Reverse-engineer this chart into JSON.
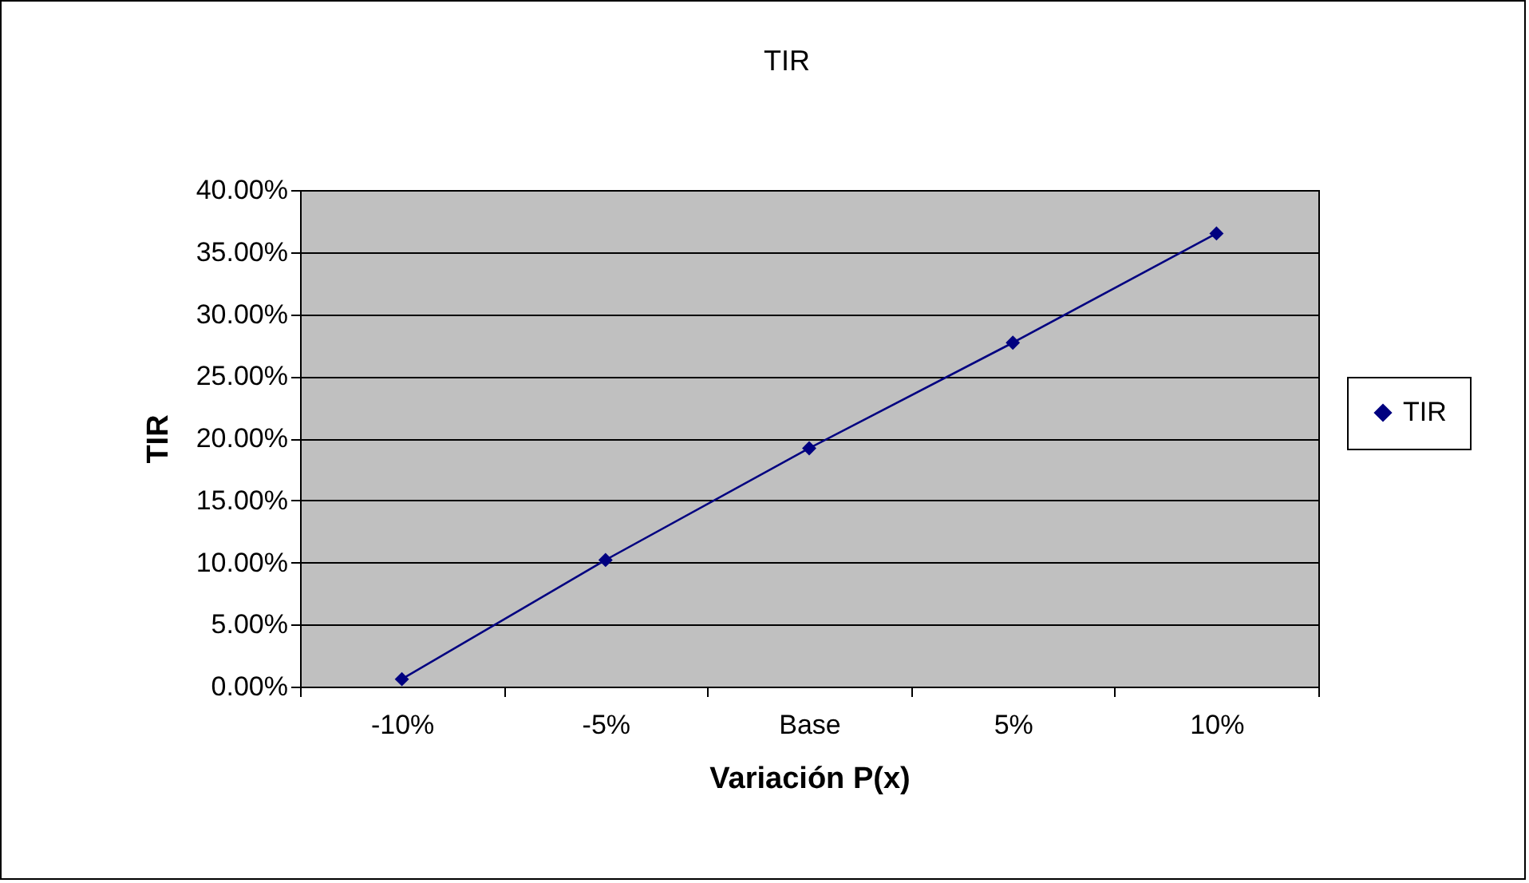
{
  "chart_data": {
    "type": "line",
    "title": "TIR",
    "xlabel": "Variación P(x)",
    "ylabel": "TIR",
    "categories": [
      "-10%",
      "-5%",
      "Base",
      "5%",
      "10%"
    ],
    "series": [
      {
        "name": "TIR",
        "color": "#000080",
        "values": [
          0.6,
          10.2,
          19.2,
          27.7,
          36.5
        ]
      }
    ],
    "ylim": [
      0,
      40
    ],
    "yticks": [
      {
        "value": 0,
        "label": "0.00%"
      },
      {
        "value": 5,
        "label": "5.00%"
      },
      {
        "value": 10,
        "label": "10.00%"
      },
      {
        "value": 15,
        "label": "15.00%"
      },
      {
        "value": 20,
        "label": "20.00%"
      },
      {
        "value": 25,
        "label": "25.00%"
      },
      {
        "value": 30,
        "label": "30.00%"
      },
      {
        "value": 35,
        "label": "35.00%"
      },
      {
        "value": 40,
        "label": "40.00%"
      }
    ],
    "grid": "y",
    "legend": "right",
    "marker": "diamond",
    "line_style": "solid"
  }
}
